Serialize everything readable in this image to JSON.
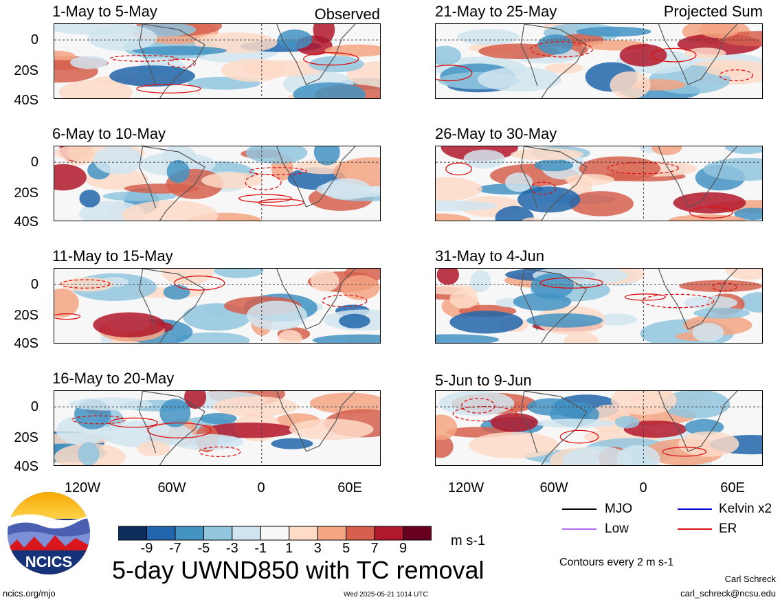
{
  "header": {
    "observed_label": "Observed",
    "projected_label": "Projected Sum"
  },
  "panels": [
    {
      "title": "1-May to 5-May"
    },
    {
      "title": "6-May to 10-May"
    },
    {
      "title": "11-May to 15-May"
    },
    {
      "title": "16-May to 20-May"
    },
    {
      "title": "21-May to 25-May"
    },
    {
      "title": "26-May to 30-May"
    },
    {
      "title": "31-May to 4-Jun"
    },
    {
      "title": "5-Jun to 9-Jun"
    }
  ],
  "chart_data": {
    "type": "heatmap",
    "title": "5-day UWND850 with TC removal",
    "variable": "UWND850",
    "units": "m s-1",
    "lat_ticks": [
      "0",
      "20S",
      "40S"
    ],
    "lon_ticks": [
      "120W",
      "60W",
      "0",
      "60E"
    ],
    "colorbar_ticks": [
      "-9",
      "-7",
      "-5",
      "-3",
      "-1",
      "1",
      "3",
      "5",
      "7",
      "9"
    ],
    "colorbar_colors": [
      "#0c2e5c",
      "#2166ac",
      "#4393c3",
      "#92c5de",
      "#d1e5f0",
      "#f7f7f7",
      "#fddbc7",
      "#f4a582",
      "#d6604d",
      "#b2182b",
      "#67001f"
    ],
    "contour_note": "Contours every 2 m s-1",
    "legend": [
      {
        "name": "MJO",
        "color": "#000000"
      },
      {
        "name": "Kelvin x2",
        "color": "#0000cc"
      },
      {
        "name": "Low",
        "color": "#b36bff"
      },
      {
        "name": "ER",
        "color": "#dd1111"
      }
    ]
  },
  "footer": {
    "logo_text": "NCICS",
    "site": "ncics.org/mjo",
    "timestamp": "Wed 2025-05-21 1014 UTC",
    "author": "Carl Schreck",
    "email": "carl_schreck@ncsu.edu"
  }
}
